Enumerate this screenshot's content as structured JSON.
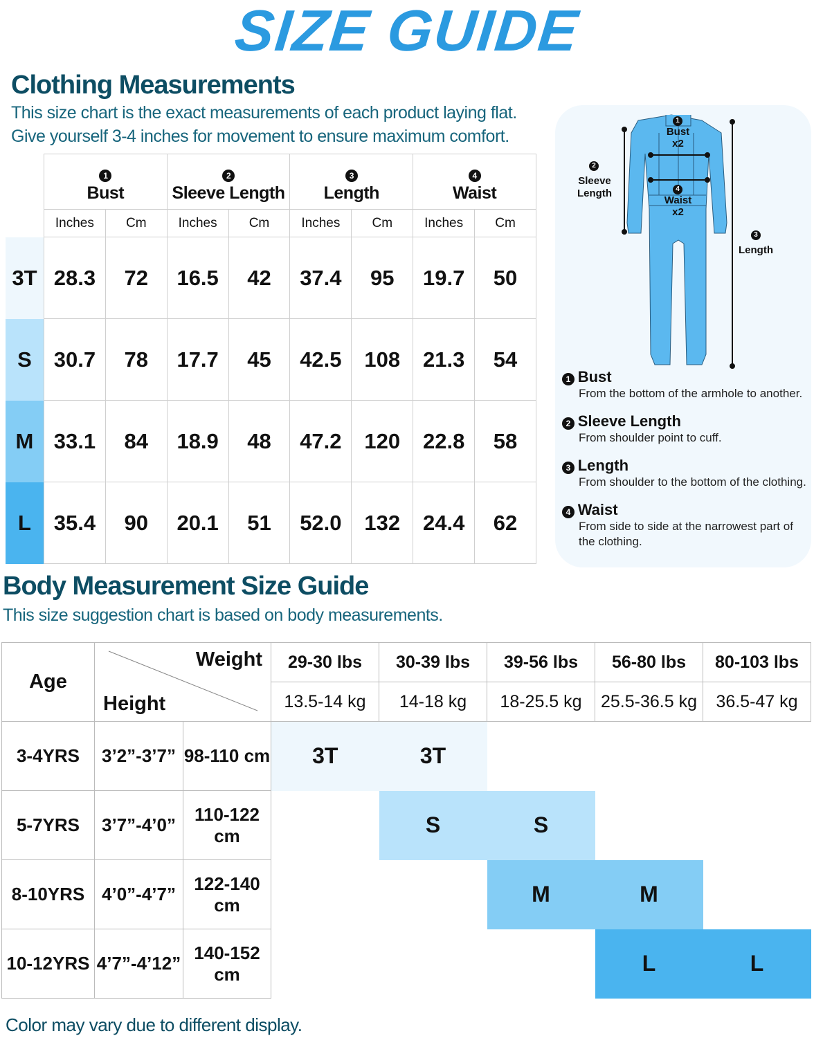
{
  "title": "SIZE GUIDE",
  "clothing": {
    "heading": "Clothing Measurements",
    "subtitle_lines": [
      "This size chart is the exact measurements of each product laying flat.",
      "Give yourself 3-4 inches for movement to ensure maximum comfort."
    ],
    "columns": [
      {
        "num": "1",
        "label": "Bust"
      },
      {
        "num": "2",
        "label": "Sleeve Length"
      },
      {
        "num": "3",
        "label": "Length"
      },
      {
        "num": "4",
        "label": "Waist"
      }
    ],
    "units": [
      "Inches",
      "Cm"
    ],
    "rows": [
      {
        "size": "3T",
        "color": "#eef7fd",
        "values": [
          "28.3",
          "72",
          "16.5",
          "42",
          "37.4",
          "95",
          "19.7",
          "50"
        ]
      },
      {
        "size": "S",
        "color": "#b9e3fb",
        "values": [
          "30.7",
          "78",
          "17.7",
          "45",
          "42.5",
          "108",
          "21.3",
          "54"
        ]
      },
      {
        "size": "M",
        "color": "#84cdf5",
        "values": [
          "33.1",
          "84",
          "18.9",
          "48",
          "47.2",
          "120",
          "22.8",
          "58"
        ]
      },
      {
        "size": "L",
        "color": "#4ab4ef",
        "values": [
          "35.4",
          "90",
          "20.1",
          "51",
          "52.0",
          "132",
          "24.4",
          "62"
        ]
      }
    ]
  },
  "diagram": {
    "bust_label": "Bust",
    "bust_x": "x2",
    "waist_label": "Waist",
    "waist_x": "x2",
    "sleeve_label_1": "Sleeve",
    "sleeve_label_2": "Length",
    "length_label": "Length",
    "num1": "1",
    "num2": "2",
    "num3": "3",
    "num4": "4",
    "garment_color": "#5bb8ef"
  },
  "legend": [
    {
      "num": "1",
      "title": "Bust",
      "desc": "From the bottom of the armhole to another."
    },
    {
      "num": "2",
      "title": "Sleeve Length",
      "desc": "From shoulder point to cuff."
    },
    {
      "num": "3",
      "title": "Length",
      "desc": "From shoulder to the bottom of the clothing."
    },
    {
      "num": "4",
      "title": "Waist",
      "desc": "From side to side at the narrowest part of the clothing."
    }
  ],
  "body": {
    "heading": "Body Measurement Size Guide",
    "subtitle": "This size suggestion chart is based on body measurements.",
    "age_header": "Age",
    "weight_header": "Weight",
    "height_header": "Height",
    "weights_lbs": [
      "29-30 lbs",
      "30-39 lbs",
      "39-56 lbs",
      "56-80 lbs",
      "80-103 lbs"
    ],
    "weights_kg": [
      "13.5-14 kg",
      "14-18 kg",
      "18-25.5 kg",
      "25.5-36.5 kg",
      "36.5-47 kg"
    ],
    "rows": [
      {
        "age": "3-4YRS",
        "height_ft": "3’2”-3’7”",
        "height_cm": "98-110 cm",
        "sizes": [
          "3T",
          "3T",
          "",
          "",
          ""
        ],
        "color": "#eef7fd"
      },
      {
        "age": "5-7YRS",
        "height_ft": "3’7”-4’0”",
        "height_cm": "110-122 cm",
        "sizes": [
          "",
          "S",
          "S",
          "",
          ""
        ],
        "color": "#b9e3fb"
      },
      {
        "age": "8-10YRS",
        "height_ft": "4’0”-4’7”",
        "height_cm": "122-140 cm",
        "sizes": [
          "",
          "",
          "M",
          "M",
          ""
        ],
        "color": "#84cdf5"
      },
      {
        "age": "10-12YRS",
        "height_ft": "4’7”-4’12”",
        "height_cm": "140-152 cm",
        "sizes": [
          "",
          "",
          "",
          "L",
          "L"
        ],
        "color": "#4ab4ef"
      }
    ]
  },
  "footer": "Color may vary due to different display.",
  "colors": {
    "title": "#2b9ae0",
    "heading": "#0d4d63",
    "panel": "#f1f8fd"
  }
}
